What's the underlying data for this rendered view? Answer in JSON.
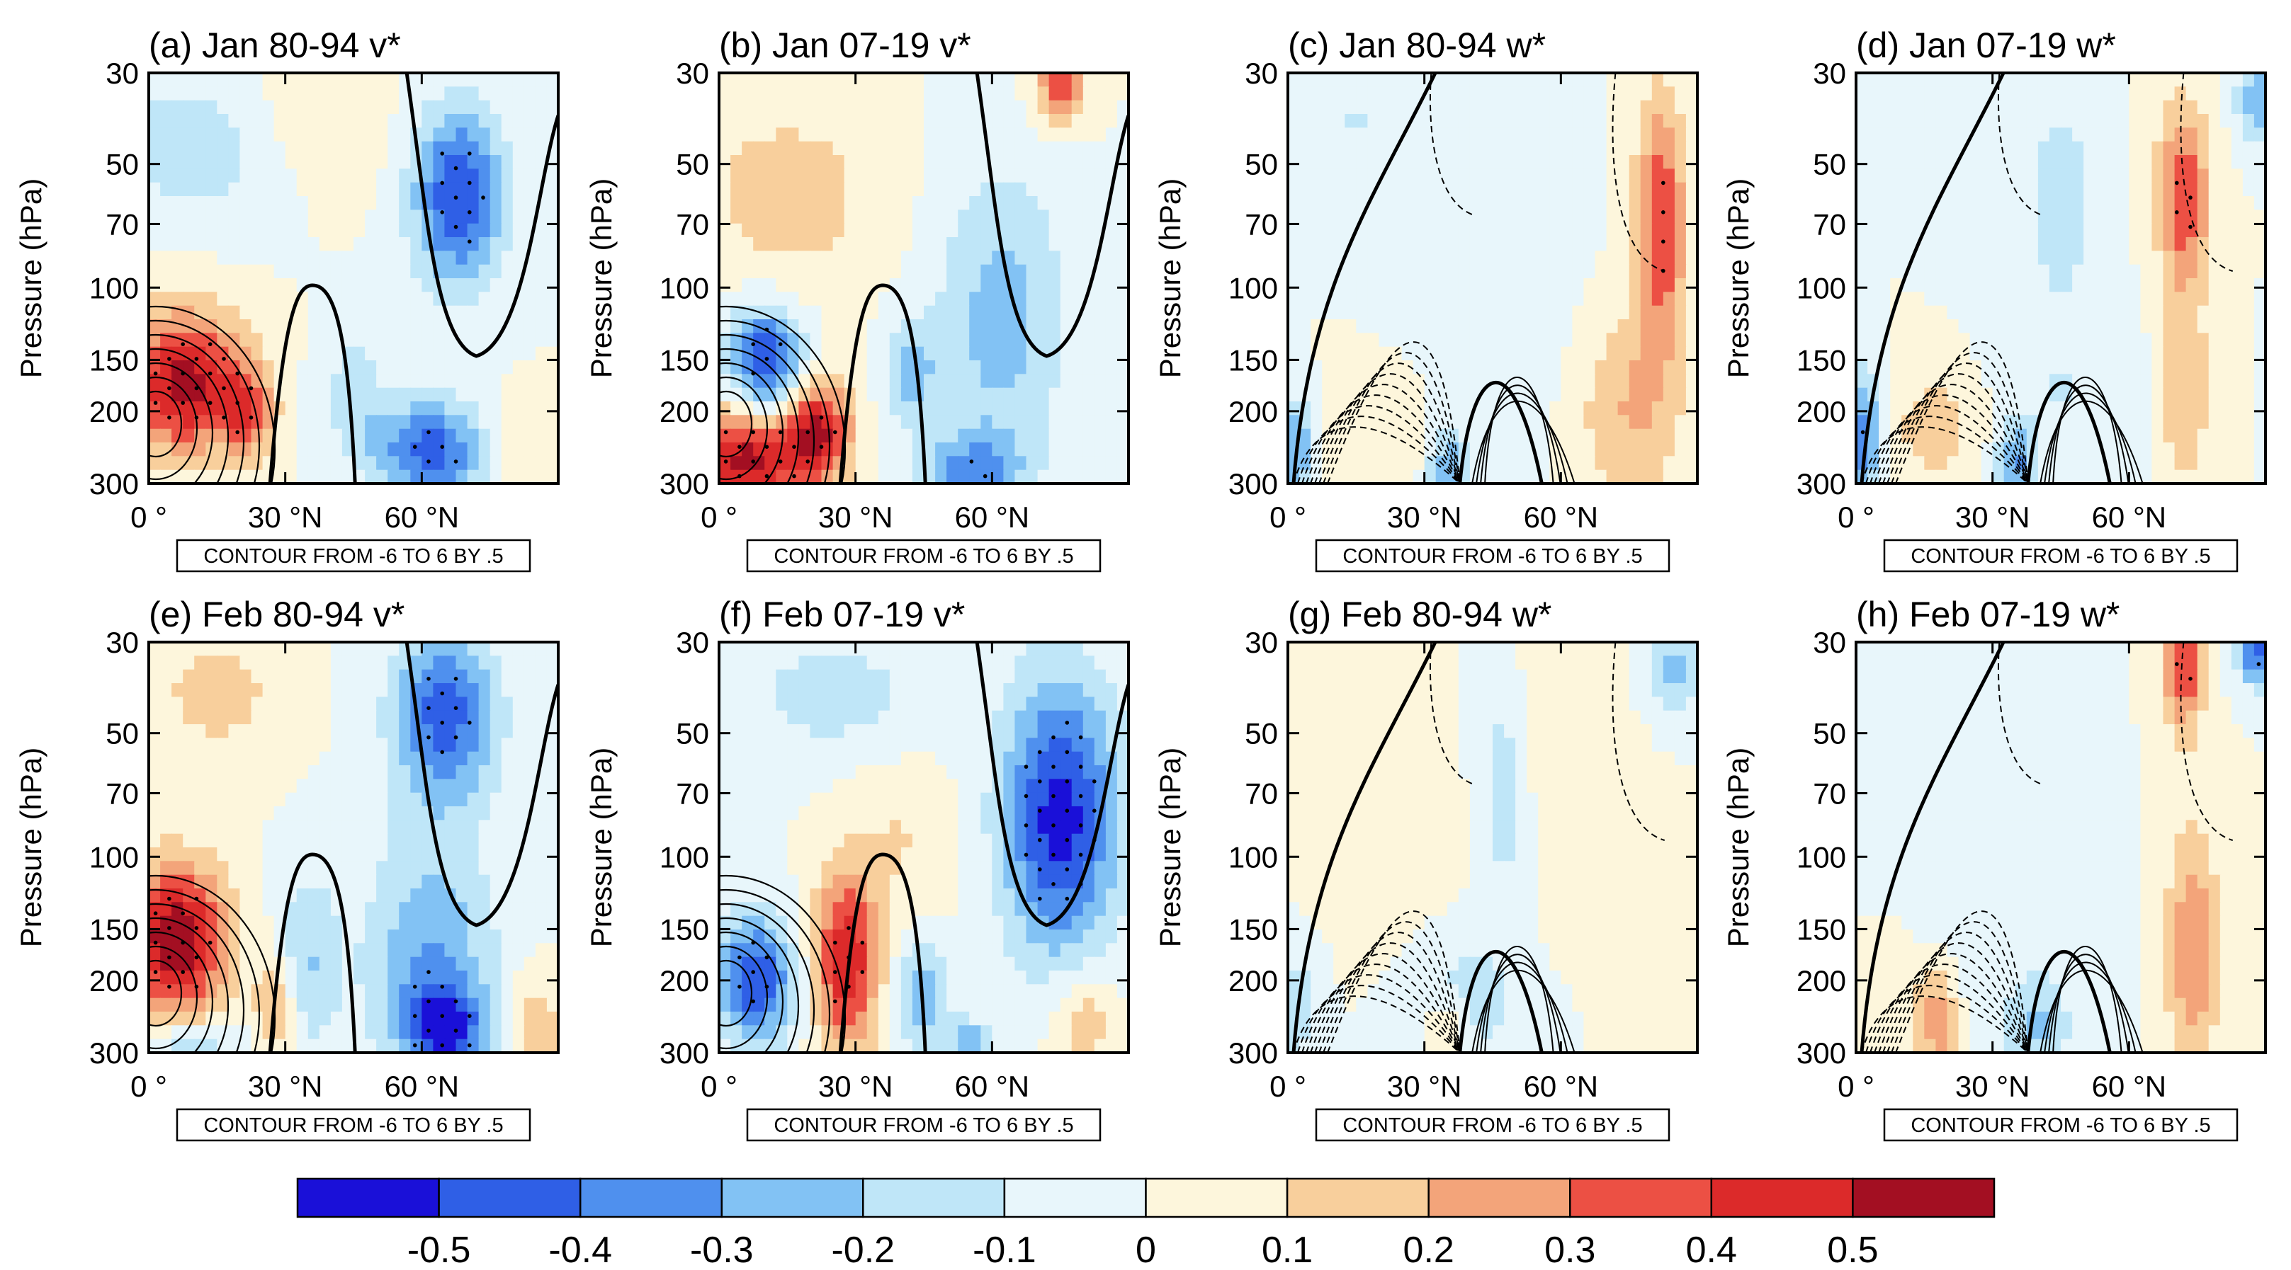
{
  "chart_data": {
    "type": "heatmap",
    "description_units": "filled shading = anomaly (colorbar), line contours = climatology",
    "y_axis": {
      "label": "Pressure (hPa)",
      "scale": "log",
      "range": [
        30,
        300
      ],
      "ticks": [
        30,
        50,
        70,
        100,
        150,
        200,
        300
      ]
    },
    "x_axis": {
      "range": [
        0,
        90
      ],
      "ticks": [
        {
          "value": 0,
          "label": "0 °"
        },
        {
          "value": 30,
          "label": "30 °N"
        },
        {
          "value": 60,
          "label": "60 °N"
        }
      ]
    },
    "contour_info": "CONTOUR FROM -6 TO 6 BY .5",
    "colorbar": {
      "levels": [
        "-0.5",
        "-0.4",
        "-0.3",
        "-0.2",
        "-0.1",
        "0",
        "0.1",
        "0.2",
        "0.3",
        "0.4",
        "0.5"
      ],
      "colors": [
        "#1a10d8",
        "#2f5fe6",
        "#4f90ee",
        "#82c2f4",
        "#bfe6f8",
        "#e8f6fb",
        "#fdf6dc",
        "#f8cf9c",
        "#f3a47a",
        "#ec5044",
        "#dc2a2a",
        "#a30f22"
      ]
    },
    "panels": [
      {
        "id": "a",
        "title": "(a) Jan 80-94 v*",
        "var": "v",
        "blobs": [
          {
            "lat": 8,
            "p": 170,
            "v": 0.55,
            "sx": 9,
            "sy": 0.28
          },
          {
            "lat": 22,
            "p": 200,
            "v": 0.3,
            "sx": 4,
            "sy": 0.18
          },
          {
            "lat": 12,
            "p": 45,
            "v": -0.2,
            "sx": 14,
            "sy": 0.3
          },
          {
            "lat": 68,
            "p": 60,
            "v": -0.5,
            "sx": 7,
            "sy": 0.35
          },
          {
            "lat": 62,
            "p": 250,
            "v": -0.45,
            "sx": 9,
            "sy": 0.2
          },
          {
            "lat": 45,
            "p": 180,
            "v": -0.15,
            "sx": 5,
            "sy": 0.25
          },
          {
            "lat": 30,
            "p": 40,
            "v": 0.1,
            "sx": 15,
            "sy": 0.3
          },
          {
            "lat": 80,
            "p": 250,
            "v": 0.1,
            "sx": 6,
            "sy": 0.2
          }
        ]
      },
      {
        "id": "b",
        "title": "(b) Jan 07-19 v*",
        "var": "v",
        "blobs": [
          {
            "lat": 10,
            "p": 150,
            "v": -0.5,
            "sx": 6,
            "sy": 0.22
          },
          {
            "lat": 6,
            "p": 260,
            "v": 0.55,
            "sx": 10,
            "sy": 0.2
          },
          {
            "lat": 22,
            "p": 220,
            "v": 0.45,
            "sx": 5,
            "sy": 0.2
          },
          {
            "lat": 15,
            "p": 60,
            "v": 0.15,
            "sx": 15,
            "sy": 0.4
          },
          {
            "lat": 75,
            "p": 32,
            "v": 0.35,
            "sx": 4,
            "sy": 0.15
          },
          {
            "lat": 62,
            "p": 120,
            "v": -0.25,
            "sx": 10,
            "sy": 0.6
          },
          {
            "lat": 42,
            "p": 160,
            "v": -0.25,
            "sx": 4,
            "sy": 0.2
          },
          {
            "lat": 55,
            "p": 280,
            "v": -0.3,
            "sx": 8,
            "sy": 0.15
          }
        ]
      },
      {
        "id": "c",
        "title": "(c) Jan 80-94 w*",
        "var": "w",
        "blobs": [
          {
            "lat": 82,
            "p": 70,
            "v": 0.4,
            "sx": 4,
            "sy": 0.5
          },
          {
            "lat": 75,
            "p": 200,
            "v": 0.2,
            "sx": 8,
            "sy": 0.4
          },
          {
            "lat": 2,
            "p": 250,
            "v": -0.3,
            "sx": 3,
            "sy": 0.2
          },
          {
            "lat": 35,
            "p": 280,
            "v": -0.3,
            "sx": 3,
            "sy": 0.15
          },
          {
            "lat": 20,
            "p": 230,
            "v": 0.1,
            "sx": 8,
            "sy": 0.25
          },
          {
            "lat": 45,
            "p": 90,
            "v": -0.1,
            "sx": 12,
            "sy": 0.6
          },
          {
            "lat": 15,
            "p": 40,
            "v": -0.1,
            "sx": 10,
            "sy": 0.2
          }
        ]
      },
      {
        "id": "d",
        "title": "(d) Jan 07-19 w*",
        "var": "w",
        "blobs": [
          {
            "lat": 72,
            "p": 60,
            "v": 0.4,
            "sx": 4,
            "sy": 0.35
          },
          {
            "lat": 72,
            "p": 180,
            "v": 0.2,
            "sx": 4,
            "sy": 0.4
          },
          {
            "lat": 2,
            "p": 230,
            "v": -0.4,
            "sx": 2.5,
            "sy": 0.25
          },
          {
            "lat": 35,
            "p": 270,
            "v": -0.3,
            "sx": 3,
            "sy": 0.15
          },
          {
            "lat": 18,
            "p": 220,
            "v": 0.15,
            "sx": 8,
            "sy": 0.25
          },
          {
            "lat": 45,
            "p": 60,
            "v": -0.2,
            "sx": 5,
            "sy": 0.35
          },
          {
            "lat": 88,
            "p": 35,
            "v": -0.3,
            "sx": 3,
            "sy": 0.15
          },
          {
            "lat": 45,
            "p": 180,
            "v": -0.1,
            "sx": 12,
            "sy": 0.4
          }
        ]
      },
      {
        "id": "e",
        "title": "(e) Feb 80-94 v*",
        "var": "v",
        "blobs": [
          {
            "lat": 6,
            "p": 160,
            "v": 0.6,
            "sx": 8,
            "sy": 0.3
          },
          {
            "lat": 28,
            "p": 230,
            "v": 0.25,
            "sx": 3,
            "sy": 0.2
          },
          {
            "lat": 8,
            "p": 290,
            "v": -0.2,
            "sx": 8,
            "sy": 0.1
          },
          {
            "lat": 65,
            "p": 45,
            "v": -0.45,
            "sx": 8,
            "sy": 0.35
          },
          {
            "lat": 62,
            "p": 180,
            "v": -0.3,
            "sx": 10,
            "sy": 0.5
          },
          {
            "lat": 65,
            "p": 260,
            "v": -0.45,
            "sx": 6,
            "sy": 0.15
          },
          {
            "lat": 35,
            "p": 180,
            "v": -0.2,
            "sx": 5,
            "sy": 0.35
          },
          {
            "lat": 15,
            "p": 40,
            "v": 0.15,
            "sx": 10,
            "sy": 0.25
          },
          {
            "lat": 85,
            "p": 260,
            "v": 0.2,
            "sx": 4,
            "sy": 0.2
          }
        ]
      },
      {
        "id": "f",
        "title": "(f) Feb 07-19 v*",
        "var": "v",
        "blobs": [
          {
            "lat": 8,
            "p": 200,
            "v": -0.5,
            "sx": 6,
            "sy": 0.25
          },
          {
            "lat": 28,
            "p": 180,
            "v": 0.5,
            "sx": 5,
            "sy": 0.35
          },
          {
            "lat": 75,
            "p": 80,
            "v": -0.55,
            "sx": 9,
            "sy": 0.55
          },
          {
            "lat": 25,
            "p": 40,
            "v": -0.15,
            "sx": 15,
            "sy": 0.25
          },
          {
            "lat": 45,
            "p": 220,
            "v": -0.3,
            "sx": 4,
            "sy": 0.2
          },
          {
            "lat": 80,
            "p": 250,
            "v": 0.2,
            "sx": 5,
            "sy": 0.2
          },
          {
            "lat": 40,
            "p": 90,
            "v": 0.1,
            "sx": 8,
            "sy": 0.3
          },
          {
            "lat": 55,
            "p": 290,
            "v": -0.3,
            "sx": 3,
            "sy": 0.1
          }
        ]
      },
      {
        "id": "g",
        "title": "(g) Feb 80-94 w*",
        "var": "w",
        "blobs": [
          {
            "lat": 48,
            "p": 70,
            "v": -0.2,
            "sx": 4,
            "sy": 0.4
          },
          {
            "lat": 40,
            "p": 220,
            "v": -0.15,
            "sx": 8,
            "sy": 0.3
          },
          {
            "lat": 85,
            "p": 35,
            "v": -0.25,
            "sx": 4,
            "sy": 0.15
          },
          {
            "lat": 35,
            "p": 270,
            "v": 0.2,
            "sx": 3,
            "sy": 0.15
          },
          {
            "lat": 2,
            "p": 230,
            "v": -0.2,
            "sx": 3,
            "sy": 0.2
          },
          {
            "lat": 60,
            "p": 60,
            "v": 0.1,
            "sx": 8,
            "sy": 0.5
          },
          {
            "lat": 25,
            "p": 100,
            "v": 0.08,
            "sx": 10,
            "sy": 0.3
          }
        ]
      },
      {
        "id": "h",
        "title": "(h) Feb 07-19 w*",
        "var": "w",
        "blobs": [
          {
            "lat": 72,
            "p": 35,
            "v": 0.4,
            "sx": 3,
            "sy": 0.25
          },
          {
            "lat": 74,
            "p": 170,
            "v": 0.3,
            "sx": 4,
            "sy": 0.5
          },
          {
            "lat": 88,
            "p": 32,
            "v": -0.45,
            "sx": 3,
            "sy": 0.12
          },
          {
            "lat": 18,
            "p": 250,
            "v": 0.3,
            "sx": 3,
            "sy": 0.2
          },
          {
            "lat": 40,
            "p": 260,
            "v": -0.2,
            "sx": 5,
            "sy": 0.2
          },
          {
            "lat": 30,
            "p": 150,
            "v": -0.05,
            "sx": 15,
            "sy": 0.5
          },
          {
            "lat": 8,
            "p": 220,
            "v": 0.1,
            "sx": 5,
            "sy": 0.25
          }
        ]
      }
    ]
  }
}
